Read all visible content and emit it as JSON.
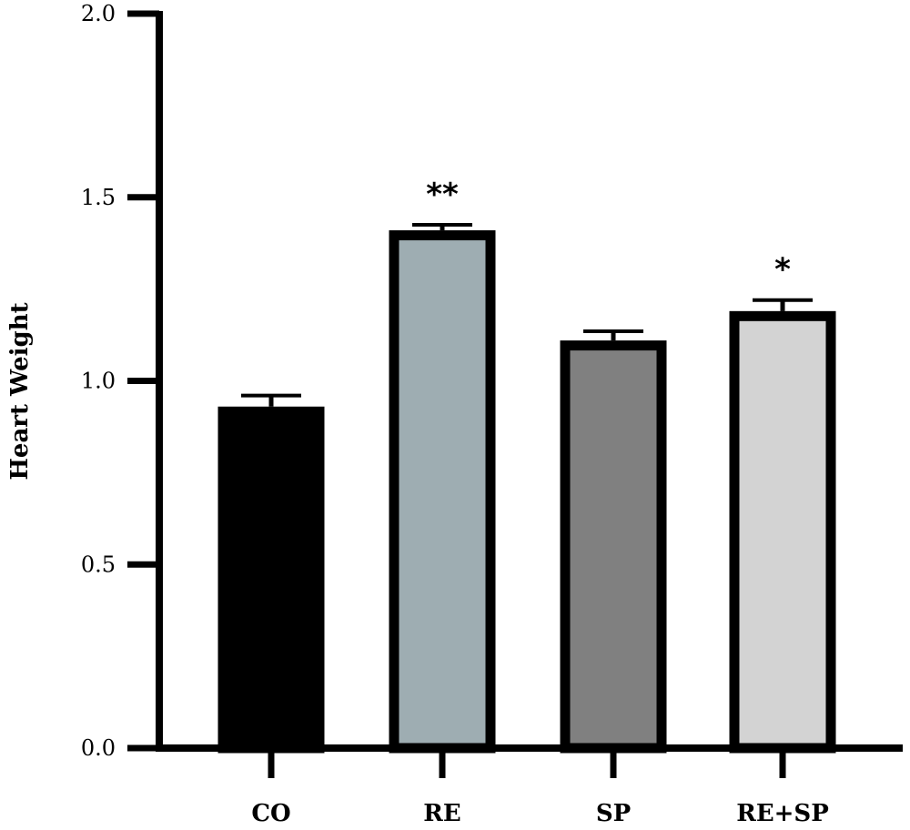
{
  "chart_data": {
    "type": "bar",
    "title": "",
    "xlabel": "",
    "ylabel": "Heart Weight",
    "ylim": [
      0,
      2.0
    ],
    "yticks": [
      "0.0",
      "0.5",
      "1.0",
      "1.5",
      "2.0"
    ],
    "ytick_values": [
      0,
      0.5,
      1.0,
      1.5,
      2.0
    ],
    "grid": false,
    "categories": [
      "CO",
      "RE",
      "SP",
      "RE+SP"
    ],
    "values": [
      0.93,
      1.41,
      1.11,
      1.19
    ],
    "errors": [
      0.03,
      0.015,
      0.025,
      0.03
    ],
    "significance": [
      "",
      "**",
      "",
      "*"
    ],
    "colors": [
      "#000000",
      "#9eadb2",
      "#808080",
      "#d3d3d3"
    ],
    "outline_color": "#000000"
  }
}
